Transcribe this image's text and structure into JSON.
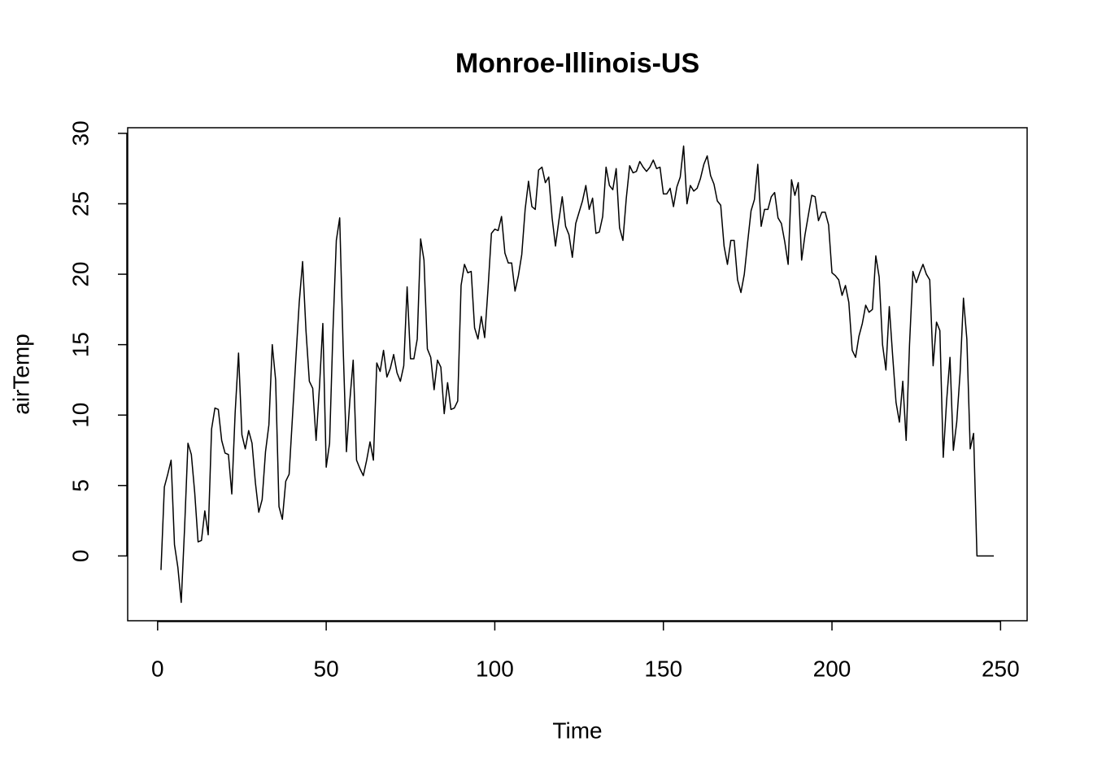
{
  "chart_data": {
    "type": "line",
    "title": "Monroe-Illinois-US",
    "x_label": "Time",
    "y_label": "airTemp",
    "x": [
      1,
      2,
      3,
      4,
      5,
      6,
      7,
      8,
      9,
      10,
      11,
      12,
      13,
      14,
      15,
      16,
      17,
      18,
      19,
      20,
      21,
      22,
      23,
      24,
      25,
      26,
      27,
      28,
      29,
      30,
      31,
      32,
      33,
      34,
      35,
      36,
      37,
      38,
      39,
      40,
      41,
      42,
      43,
      44,
      45,
      46,
      47,
      48,
      49,
      50,
      51,
      52,
      53,
      54,
      55,
      56,
      57,
      58,
      59,
      60,
      61,
      62,
      63,
      64,
      65,
      66,
      67,
      68,
      69,
      70,
      71,
      72,
      73,
      74,
      75,
      76,
      77,
      78,
      79,
      80,
      81,
      82,
      83,
      84,
      85,
      86,
      87,
      88,
      89,
      90,
      91,
      92,
      93,
      94,
      95,
      96,
      97,
      98,
      99,
      100,
      101,
      102,
      103,
      104,
      105,
      106,
      107,
      108,
      109,
      110,
      111,
      112,
      113,
      114,
      115,
      116,
      117,
      118,
      119,
      120,
      121,
      122,
      123,
      124,
      125,
      126,
      127,
      128,
      129,
      130,
      131,
      132,
      133,
      134,
      135,
      136,
      137,
      138,
      139,
      140,
      141,
      142,
      143,
      144,
      145,
      146,
      147,
      148,
      149,
      150,
      151,
      152,
      153,
      154,
      155,
      156,
      157,
      158,
      159,
      160,
      161,
      162,
      163,
      164,
      165,
      166,
      167,
      168,
      169,
      170,
      171,
      172,
      173,
      174,
      175,
      176,
      177,
      178,
      179,
      180,
      181,
      182,
      183,
      184,
      185,
      186,
      187,
      188,
      189,
      190,
      191,
      192,
      193,
      194,
      195,
      196,
      197,
      198,
      199,
      200,
      201,
      202,
      203,
      204,
      205,
      206,
      207,
      208,
      209,
      210,
      211,
      212,
      213,
      214,
      215,
      216,
      217,
      218,
      219,
      220,
      221,
      222,
      223,
      224,
      225,
      226,
      227,
      228,
      229,
      230,
      231,
      232,
      233,
      234,
      235,
      236,
      237,
      238,
      239,
      240,
      241,
      242,
      243,
      244,
      245,
      246,
      247,
      248
    ],
    "series": [
      {
        "name": "airTemp",
        "color": "#000000",
        "values": [
          -1.0,
          4.9,
          5.8,
          6.8,
          0.8,
          -0.8,
          -3.3,
          2.0,
          8.0,
          7.2,
          4.5,
          1.0,
          1.1,
          3.2,
          1.5,
          9.0,
          10.5,
          10.4,
          8.2,
          7.3,
          7.2,
          4.4,
          10.2,
          14.4,
          8.6,
          7.6,
          8.9,
          8.0,
          5.2,
          3.1,
          4.0,
          7.4,
          9.3,
          15.0,
          12.5,
          3.5,
          2.6,
          5.3,
          5.8,
          9.9,
          14.0,
          18.0,
          20.9,
          16.0,
          12.4,
          11.9,
          8.2,
          12.0,
          16.5,
          6.3,
          8.0,
          16.0,
          22.4,
          24.0,
          15.0,
          7.4,
          11.0,
          13.9,
          6.8,
          6.2,
          5.7,
          6.8,
          8.1,
          6.8,
          13.7,
          13.1,
          14.6,
          12.7,
          13.3,
          14.3,
          13.0,
          12.4,
          13.5,
          19.1,
          14.0,
          14.0,
          15.4,
          22.5,
          21.0,
          14.7,
          14.1,
          11.8,
          13.9,
          13.4,
          10.1,
          12.3,
          10.4,
          10.5,
          11.0,
          19.2,
          20.7,
          20.1,
          20.2,
          16.2,
          15.4,
          17.0,
          15.5,
          19.0,
          22.9,
          23.2,
          23.1,
          24.1,
          21.5,
          20.8,
          20.8,
          18.8,
          19.9,
          21.4,
          24.6,
          26.6,
          24.8,
          24.6,
          27.4,
          27.6,
          26.5,
          26.9,
          24.0,
          22.0,
          23.8,
          25.5,
          23.4,
          22.8,
          21.2,
          23.6,
          24.4,
          25.2,
          26.3,
          24.6,
          25.4,
          22.9,
          23.0,
          24.1,
          27.6,
          26.3,
          26.0,
          27.5,
          23.3,
          22.4,
          25.4,
          27.7,
          27.2,
          27.3,
          28.0,
          27.6,
          27.3,
          27.6,
          28.1,
          27.5,
          27.6,
          25.7,
          25.7,
          26.1,
          24.8,
          26.2,
          26.9,
          29.1,
          25.0,
          26.3,
          25.9,
          26.1,
          26.8,
          27.8,
          28.4,
          27.0,
          26.4,
          25.2,
          24.9,
          22.0,
          20.7,
          22.4,
          22.4,
          19.6,
          18.7,
          20.0,
          22.3,
          24.5,
          25.3,
          27.8,
          23.4,
          24.6,
          24.6,
          25.5,
          25.8,
          24.0,
          23.6,
          22.3,
          20.7,
          26.7,
          25.6,
          26.5,
          21.0,
          22.8,
          24.2,
          25.6,
          25.5,
          23.8,
          24.4,
          24.4,
          23.5,
          20.1,
          19.9,
          19.6,
          18.5,
          19.2,
          18.0,
          14.6,
          14.1,
          15.6,
          16.5,
          17.8,
          17.3,
          17.5,
          21.3,
          19.8,
          15.0,
          13.2,
          17.7,
          14.2,
          10.9,
          9.5,
          12.4,
          8.2,
          15.0,
          20.2,
          19.4,
          20.1,
          20.7,
          20.0,
          19.6,
          13.5,
          16.6,
          16.0,
          7.0,
          11.0,
          14.1,
          7.5,
          9.5,
          13.0,
          18.3,
          15.4,
          7.6,
          8.7,
          0,
          0,
          0,
          0,
          0,
          0
        ]
      }
    ],
    "xlim": [
      -8.88,
      257.88
    ],
    "xticks": [
      0,
      50,
      100,
      150,
      200,
      250
    ],
    "ylim": [
      -4.6,
      30.4
    ],
    "yticks": [
      0,
      5,
      10,
      15,
      20,
      25,
      30
    ]
  }
}
